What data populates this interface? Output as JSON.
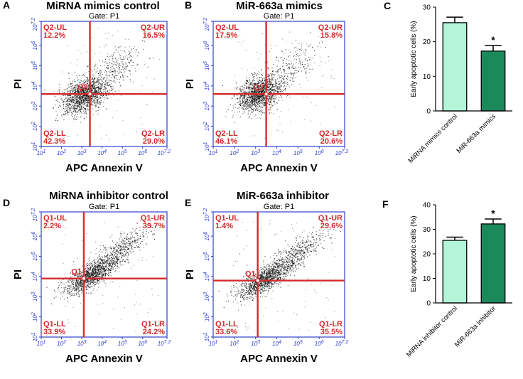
{
  "chart_data": [
    {
      "type": "scatter",
      "panel_label": "A",
      "title": "MiRNA mimics control",
      "gate": "Gate: P1",
      "xlabel": "APC Annexin V",
      "ylabel": "PI",
      "center_label": "Q2",
      "quadrants": {
        "UL": "Q2-UL",
        "UR": "Q2-UR",
        "LL": "Q2-LL",
        "LR": "Q2-LR"
      },
      "values": {
        "UL": "12.2%",
        "UR": "16.5%",
        "LL": "42.3%",
        "LR": "29.0%"
      },
      "x_ticks": [
        "10^1",
        "10^2",
        "10^3",
        "10^4",
        "10^5",
        "10^6",
        "10^7.2"
      ],
      "y_ticks": [
        "10^1",
        "10^2",
        "10^3",
        "10^4",
        "10^5",
        "10^6",
        "10^7.2"
      ],
      "x_range_log10": [
        1,
        7.2
      ],
      "y_range_log10": [
        1,
        7.2
      ],
      "gate_x_log10": 3.4,
      "gate_y_log10": 3.6
    },
    {
      "type": "scatter",
      "panel_label": "B",
      "title": "MiR-663a mimics",
      "gate": "Gate: P1",
      "xlabel": "APC Annexin V",
      "ylabel": "PI",
      "center_label": "Q2",
      "quadrants": {
        "UL": "Q2-UL",
        "UR": "Q2-UR",
        "LL": "Q2-LL",
        "LR": "Q2-LR"
      },
      "values": {
        "UL": "17.5%",
        "UR": "15.8%",
        "LL": "46.1%",
        "LR": "20.6%"
      },
      "x_ticks": [
        "10^1",
        "10^2",
        "10^3",
        "10^4",
        "10^5",
        "10^6",
        "10^7.2"
      ],
      "y_ticks": [
        "10^1",
        "10^2",
        "10^3",
        "10^4",
        "10^5",
        "10^6",
        "10^7.2"
      ],
      "x_range_log10": [
        1,
        7.2
      ],
      "y_range_log10": [
        1,
        7.2
      ],
      "gate_x_log10": 3.5,
      "gate_y_log10": 3.6
    },
    {
      "type": "bar",
      "panel_label": "C",
      "ylabel": "Early apoptotic cells (%)",
      "categories": [
        "MiRNA mimics control",
        "MiR-663a mimics"
      ],
      "values": [
        25.5,
        17.3
      ],
      "errors": [
        1.6,
        1.6
      ],
      "colors": [
        "#b4f5d8",
        "#1b8a5a"
      ],
      "significance": [
        "",
        "*"
      ],
      "ylim": [
        0,
        30
      ],
      "yticks": [
        0,
        10,
        20,
        30
      ]
    },
    {
      "type": "scatter",
      "panel_label": "D",
      "title": "MiRNA inhibitor control",
      "gate": "Gate: P1",
      "xlabel": "APC Annexin V",
      "ylabel": "PI",
      "center_label": "Q1",
      "quadrants": {
        "UL": "Q1-UL",
        "UR": "Q1-UR",
        "LL": "Q1-LL",
        "LR": "Q1-LR"
      },
      "values": {
        "UL": "2.2%",
        "UR": "39.7%",
        "LL": "33.9%",
        "LR": "24.2%"
      },
      "x_ticks": [
        "10^1",
        "10^2",
        "10^3",
        "10^4",
        "10^5",
        "10^6",
        "10^7.2"
      ],
      "y_ticks": [
        "10^1",
        "10^2",
        "10^3",
        "10^4",
        "10^5",
        "10^6",
        "10^7.2"
      ],
      "x_range_log10": [
        1,
        7.2
      ],
      "y_range_log10": [
        1,
        7.2
      ],
      "gate_x_log10": 3.1,
      "gate_y_log10": 3.9
    },
    {
      "type": "scatter",
      "panel_label": "E",
      "title": "MiR-663a inhibitor",
      "gate": "Gate: P1",
      "xlabel": "APC Annexin V",
      "ylabel": "PI",
      "center_label": "Q1",
      "quadrants": {
        "UL": "Q1-UL",
        "UR": "Q1-UR",
        "LL": "Q1-LL",
        "LR": "Q1-LR"
      },
      "values": {
        "UL": "1.4%",
        "UR": "29.6%",
        "LL": "33.6%",
        "LR": "35.5%"
      },
      "x_ticks": [
        "10^1",
        "10^2",
        "10^3",
        "10^4",
        "10^5",
        "10^6",
        "10^7.2"
      ],
      "y_ticks": [
        "10^1",
        "10^2",
        "10^3",
        "10^4",
        "10^5",
        "10^6",
        "10^7.2"
      ],
      "x_range_log10": [
        1,
        7.2
      ],
      "y_range_log10": [
        1,
        7.2
      ],
      "gate_x_log10": 3.1,
      "gate_y_log10": 3.8
    },
    {
      "type": "bar",
      "panel_label": "F",
      "ylabel": "Early apoptotic cells (%)",
      "categories": [
        "MiRNA inhibitor control",
        "MiR-663a inhibitor"
      ],
      "values": [
        25.5,
        32.2
      ],
      "errors": [
        1.3,
        2.0
      ],
      "colors": [
        "#b4f5d8",
        "#1b8a5a"
      ],
      "significance": [
        "",
        "*"
      ],
      "ylim": [
        0,
        40
      ],
      "yticks": [
        0,
        10,
        20,
        30,
        40
      ]
    }
  ]
}
